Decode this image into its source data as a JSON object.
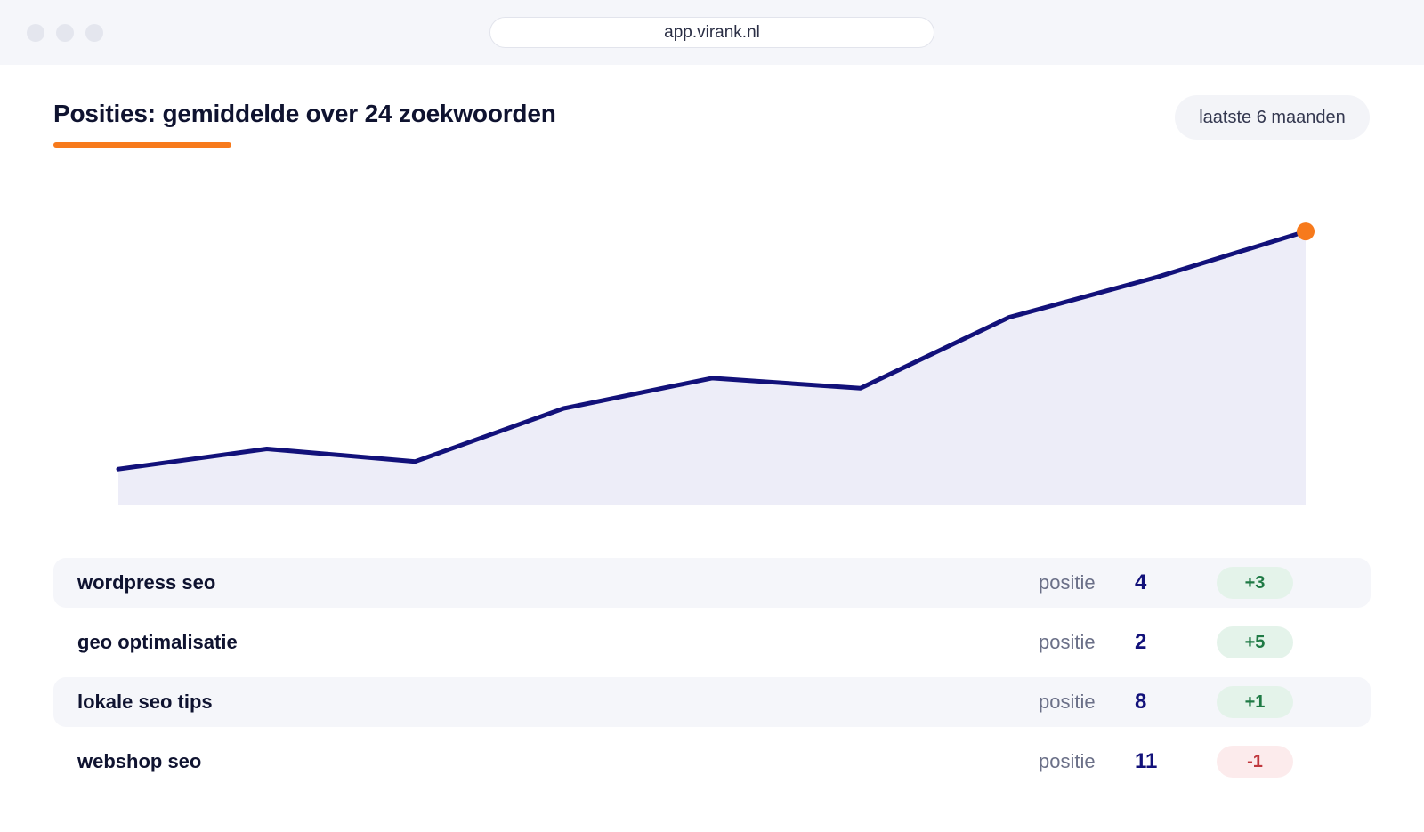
{
  "window": {
    "url": "app.virank.nl"
  },
  "header": {
    "title": "Posities: gemiddelde over 24 zoekwoorden",
    "range_label": "laatste 6 maanden"
  },
  "colors": {
    "accent": "#f77a1c",
    "line": "#12117a",
    "area": "#ededf8",
    "positive": "#1f7a45",
    "negative": "#c0363c"
  },
  "chart_data": {
    "type": "area",
    "title": "",
    "xlabel": "",
    "ylabel": "",
    "x": [
      1,
      2,
      3,
      4,
      5,
      6,
      7,
      8,
      9
    ],
    "series": [
      {
        "values": [
          0.07,
          0.11,
          0.085,
          0.19,
          0.25,
          0.23,
          0.37,
          0.45,
          0.54
        ]
      }
    ],
    "ylim": [
      0,
      0.6
    ],
    "grid": false,
    "legend": "none",
    "highlight_last_point": true
  },
  "keywords": [
    {
      "name": "wordpress seo",
      "label": "positie",
      "position": "4",
      "delta": "+3",
      "trend": "up"
    },
    {
      "name": "geo optimalisatie",
      "label": "positie",
      "position": "2",
      "delta": "+5",
      "trend": "up"
    },
    {
      "name": "lokale seo tips",
      "label": "positie",
      "position": "8",
      "delta": "+1",
      "trend": "up"
    },
    {
      "name": "webshop seo",
      "label": "positie",
      "position": "11",
      "delta": "-1",
      "trend": "down"
    }
  ]
}
